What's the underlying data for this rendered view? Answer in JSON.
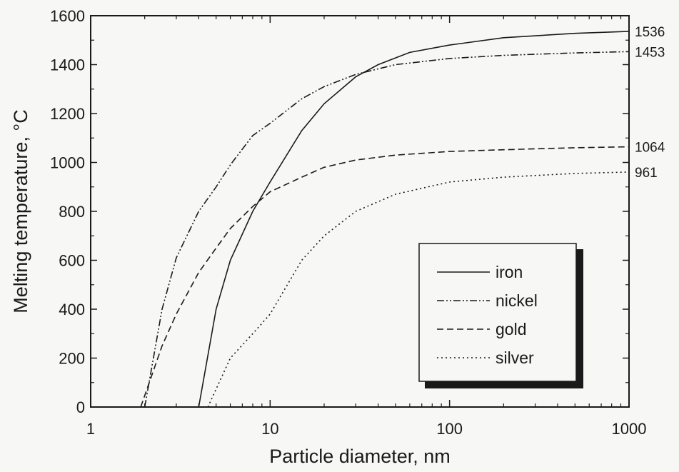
{
  "chart_data": {
    "type": "line",
    "xlabel": "Particle diameter, nm",
    "ylabel": "Melting temperature, °C",
    "xscale": "log",
    "xlim": [
      1,
      1000
    ],
    "ylim": [
      0,
      1600
    ],
    "xticks": [
      1,
      10,
      100,
      1000
    ],
    "xtick_labels": [
      "1",
      "10",
      "100",
      "1000"
    ],
    "yticks": [
      0,
      200,
      400,
      600,
      800,
      1000,
      1200,
      1400,
      1600
    ],
    "ytick_labels": [
      "0",
      "200",
      "400",
      "600",
      "800",
      "1000",
      "1200",
      "1400",
      "1600"
    ],
    "grid": false,
    "legend_position": "bottom-right",
    "series": [
      {
        "name": "iron",
        "style": "solid",
        "end_label": "1536",
        "x": [
          4,
          5,
          6,
          8,
          10,
          15,
          20,
          30,
          40,
          60,
          100,
          200,
          500,
          1000
        ],
        "y": [
          0,
          400,
          600,
          800,
          920,
          1130,
          1240,
          1350,
          1400,
          1450,
          1480,
          1510,
          1528,
          1536
        ]
      },
      {
        "name": "nickel",
        "style": "dash-dot-dot",
        "end_label": "1453",
        "x": [
          2,
          2.5,
          3,
          4,
          5,
          6,
          8,
          10,
          15,
          20,
          30,
          50,
          100,
          200,
          500,
          1000
        ],
        "y": [
          0,
          400,
          610,
          800,
          900,
          990,
          1110,
          1160,
          1260,
          1310,
          1360,
          1400,
          1425,
          1438,
          1448,
          1453
        ]
      },
      {
        "name": "gold",
        "style": "dashed",
        "end_label": "1064",
        "x": [
          1.9,
          2.5,
          3,
          4,
          5,
          6,
          8,
          10,
          15,
          20,
          30,
          50,
          100,
          200,
          500,
          1000
        ],
        "y": [
          0,
          250,
          380,
          550,
          650,
          730,
          820,
          880,
          940,
          980,
          1010,
          1030,
          1045,
          1052,
          1060,
          1064
        ]
      },
      {
        "name": "silver",
        "style": "dotted",
        "end_label": "961",
        "x": [
          4.5,
          6,
          8,
          10,
          15,
          20,
          30,
          50,
          100,
          200,
          500,
          1000
        ],
        "y": [
          0,
          200,
          300,
          380,
          600,
          700,
          800,
          870,
          920,
          940,
          955,
          961
        ]
      }
    ]
  }
}
